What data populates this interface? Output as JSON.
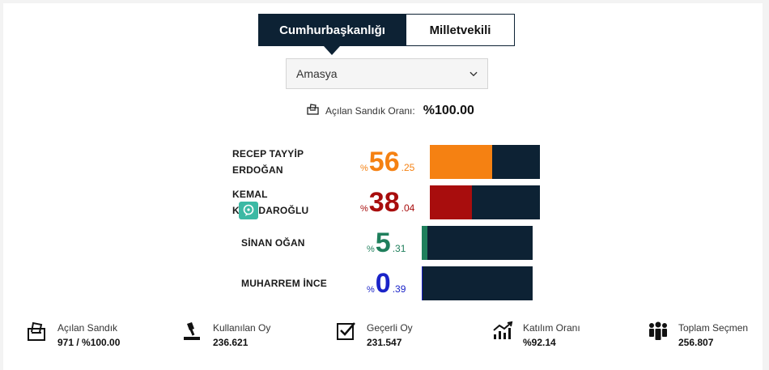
{
  "tabs": [
    {
      "label": "Cumhurbaşkanlığı",
      "active": true
    },
    {
      "label": "Milletvekili",
      "active": false
    }
  ],
  "province_select": {
    "selected": "Amasya"
  },
  "opened_ratio": {
    "label": "Açılan Sandık Oranı:",
    "value": "%100.00"
  },
  "candidates": [
    {
      "name_line1": "RECEP TAYYİP",
      "name_line2": "ERDOĞAN",
      "sign": "%",
      "big": "56",
      "small": ".25",
      "percent": 56.25,
      "color": "#f58112"
    },
    {
      "name_line1": "KEMAL",
      "name_line2": "KILIÇDAROĞLU",
      "sign": "%",
      "big": "38",
      "small": ".04",
      "percent": 38.04,
      "color": "#a80d0d"
    },
    {
      "name_line1": "SİNAN OĞAN",
      "name_line2": "",
      "sign": "%",
      "big": "5",
      "small": ".31",
      "percent": 5.31,
      "color": "#1f7f5c"
    },
    {
      "name_line1": "MUHARREM İNCE",
      "name_line2": "",
      "sign": "%",
      "big": "0",
      "small": ".39",
      "percent": 0.39,
      "color": "#1a23c8"
    }
  ],
  "stats": [
    {
      "label": "Açılan Sandık",
      "value": "971 / %100.00",
      "icon": "ballot-box-icon"
    },
    {
      "label": "Kullanılan Oy",
      "value": "236.621",
      "icon": "vote-cast-icon"
    },
    {
      "label": "Geçerli Oy",
      "value": "231.547",
      "icon": "checkbox-icon"
    },
    {
      "label": "Katılım Oranı",
      "value": "%92.14",
      "icon": "chart-growth-icon"
    },
    {
      "label": "Toplam Seçmen",
      "value": "256.807",
      "icon": "people-icon"
    }
  ],
  "colors": {
    "navy": "#0d2234",
    "orange": "#f58112",
    "red": "#a80d0d",
    "green": "#1f7f5c",
    "blue": "#1a23c8"
  }
}
